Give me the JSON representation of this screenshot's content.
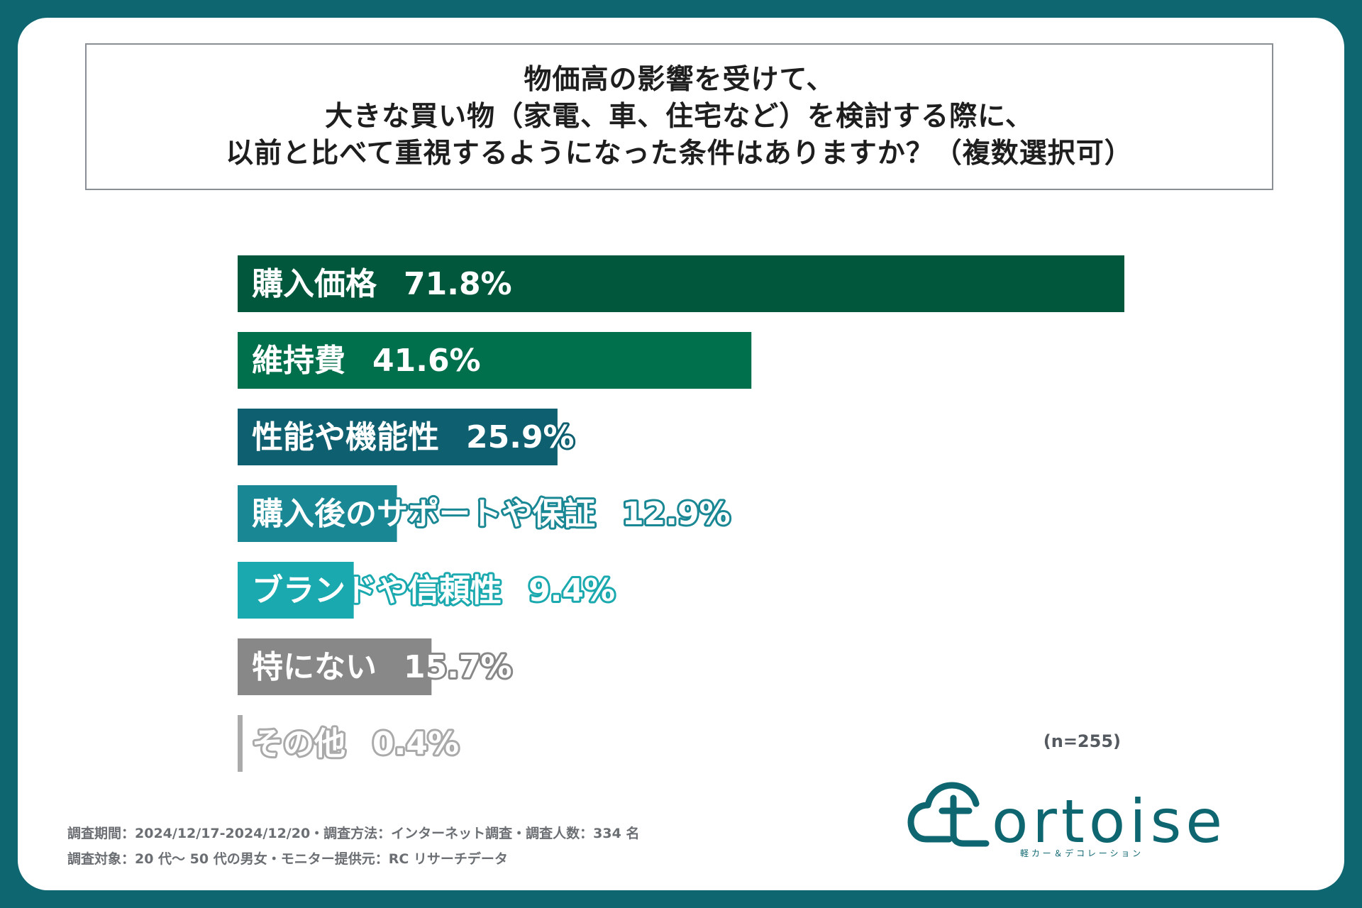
{
  "title_lines": [
    "物価高の影響を受けて、",
    "大きな買い物（家電、車、住宅など）を検討する際に、",
    "以前と比べて重視するようになった条件はありますか？（複数選択可）"
  ],
  "chart_data": {
    "type": "bar",
    "orientation": "horizontal",
    "categories": [
      "購入価格",
      "維持費",
      "性能や機能性",
      "購入後のサポートや保証",
      "ブランドや信頼性",
      "特にない",
      "その他"
    ],
    "values": [
      71.8,
      41.6,
      25.9,
      12.9,
      9.4,
      15.7,
      0.4
    ],
    "value_labels": [
      "71.8%",
      "41.6%",
      "25.9%",
      "12.9%",
      "9.4%",
      "15.7%",
      "0.4%"
    ],
    "colors": [
      "#00573c",
      "#006f4b",
      "#0e5f6f",
      "#1a8894",
      "#1aa9ae",
      "#888888",
      "#aaaaaa"
    ],
    "xlim": [
      0,
      71.8
    ],
    "grid": false,
    "legend": "none"
  },
  "sample_note": "(n=255)",
  "footer": {
    "line1": "調査期間：2024/12/17-2024/12/20・調査方法：インターネット調査・調査人数：334 名",
    "line2": "調査対象：20 代〜 50 代の男女・モニター提供元：RC リサーチデータ"
  },
  "logo": {
    "name": "tortoise",
    "tagline": "軽 カ ー ＆ デ コ レ ー シ ョ ン",
    "color": "#0e6670"
  }
}
